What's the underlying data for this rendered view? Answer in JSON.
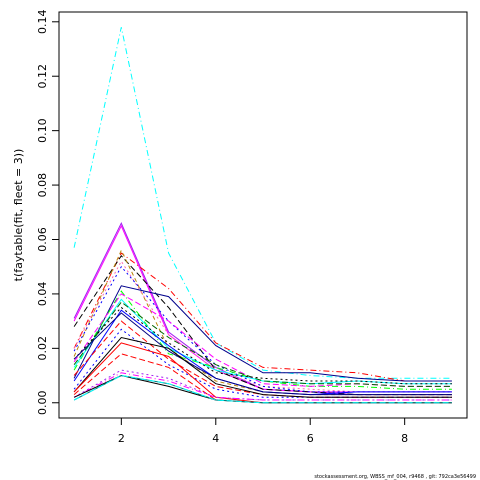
{
  "chart_data": {
    "type": "line",
    "title": "",
    "xlabel": "",
    "ylabel": "t(faytable(fit, fleet = 3))",
    "x": [
      1,
      2,
      3,
      4,
      5,
      6,
      7,
      8,
      9
    ],
    "xlim": [
      0.68,
      9.32
    ],
    "ylim": [
      -0.0056,
      0.1436
    ],
    "x_ticks": [
      2,
      4,
      6,
      8
    ],
    "y_ticks": [
      0.0,
      0.02,
      0.04,
      0.06,
      0.08,
      0.1,
      0.12,
      0.14
    ],
    "y_tick_labels": [
      "0.00",
      "0.02",
      "0.04",
      "0.06",
      "0.08",
      "0.10",
      "0.12",
      "0.14"
    ],
    "grid": false,
    "legend": "none",
    "series": [
      {
        "color": "#00ffff",
        "dash": "6,3,1,3",
        "values": [
          0.057,
          0.138,
          0.055,
          0.022,
          0.012,
          0.01,
          0.009,
          0.009,
          0.009
        ]
      },
      {
        "color": "#a020f0",
        "dash": "",
        "values": [
          0.031,
          0.066,
          0.026,
          0.013,
          0.005,
          0.004,
          0.003,
          0.003,
          0.003
        ]
      },
      {
        "color": "#ff00ff",
        "dash": "",
        "values": [
          0.03,
          0.065,
          0.025,
          0.012,
          0.005,
          0.004,
          0.004,
          0.004,
          0.004
        ]
      },
      {
        "color": "#ff0000",
        "dash": "6,3,1,3",
        "values": [
          0.02,
          0.055,
          0.042,
          0.022,
          0.013,
          0.012,
          0.011,
          0.008,
          0.008
        ]
      },
      {
        "color": "#000000",
        "dash": "6,3",
        "values": [
          0.028,
          0.054,
          0.035,
          0.012,
          0.005,
          0.004,
          0.003,
          0.003,
          0.003
        ]
      },
      {
        "color": "#b8860b",
        "dash": "4,3",
        "values": [
          0.017,
          0.056,
          0.02,
          0.008,
          0.004,
          0.003,
          0.003,
          0.003,
          0.003
        ]
      },
      {
        "color": "#ff69b4",
        "dash": "2,3",
        "values": [
          0.02,
          0.052,
          0.025,
          0.012,
          0.006,
          0.005,
          0.004,
          0.004,
          0.004
        ]
      },
      {
        "color": "#0000ff",
        "dash": "2,3",
        "values": [
          0.019,
          0.05,
          0.03,
          0.014,
          0.006,
          0.004,
          0.004,
          0.004,
          0.004
        ]
      },
      {
        "color": "#00008b",
        "dash": "",
        "values": [
          0.009,
          0.043,
          0.039,
          0.021,
          0.011,
          0.011,
          0.009,
          0.008,
          0.008
        ]
      },
      {
        "color": "#00ff00",
        "dash": "6,3,1,3",
        "values": [
          0.012,
          0.041,
          0.018,
          0.013,
          0.008,
          0.006,
          0.006,
          0.005,
          0.005
        ]
      },
      {
        "color": "#ff00ff",
        "dash": "6,3",
        "values": [
          0.015,
          0.04,
          0.03,
          0.016,
          0.007,
          0.006,
          0.007,
          0.006,
          0.006
        ]
      },
      {
        "color": "#00ffff",
        "dash": "",
        "values": [
          0.013,
          0.038,
          0.02,
          0.012,
          0.008,
          0.007,
          0.008,
          0.007,
          0.007
        ]
      },
      {
        "color": "#006400",
        "dash": "6,3",
        "values": [
          0.014,
          0.037,
          0.024,
          0.014,
          0.008,
          0.007,
          0.007,
          0.006,
          0.006
        ]
      },
      {
        "color": "#000000",
        "dash": "2,3",
        "values": [
          0.016,
          0.035,
          0.022,
          0.011,
          0.009,
          0.008,
          0.008,
          0.007,
          0.007
        ]
      },
      {
        "color": "#0000ff",
        "dash": "",
        "values": [
          0.008,
          0.034,
          0.021,
          0.009,
          0.004,
          0.003,
          0.004,
          0.004,
          0.004
        ]
      },
      {
        "color": "#000080",
        "dash": "",
        "values": [
          0.016,
          0.033,
          0.019,
          0.009,
          0.004,
          0.003,
          0.003,
          0.003,
          0.003
        ]
      },
      {
        "color": "#ff0000",
        "dash": "6,3",
        "values": [
          0.01,
          0.03,
          0.016,
          0.006,
          0.003,
          0.002,
          0.002,
          0.002,
          0.002
        ]
      },
      {
        "color": "#0000ff",
        "dash": "2,3",
        "values": [
          0.005,
          0.027,
          0.014,
          0.005,
          0.002,
          0.002,
          0.002,
          0.002,
          0.002
        ]
      },
      {
        "color": "#000000",
        "dash": "",
        "values": [
          0.004,
          0.024,
          0.02,
          0.007,
          0.003,
          0.002,
          0.002,
          0.002,
          0.002
        ]
      },
      {
        "color": "#ff0000",
        "dash": "",
        "values": [
          0.004,
          0.022,
          0.017,
          0.002,
          0.0,
          0.0,
          0.0,
          0.0,
          0.0
        ]
      },
      {
        "color": "#ff0000",
        "dash": "6,3",
        "values": [
          0.003,
          0.018,
          0.013,
          0.001,
          0.0,
          0.0,
          0.0,
          0.0,
          0.0
        ]
      },
      {
        "color": "#a020f0",
        "dash": "2,3",
        "values": [
          0.002,
          0.012,
          0.009,
          0.002,
          0.001,
          0.001,
          0.001,
          0.001,
          0.001
        ]
      },
      {
        "color": "#ff00ff",
        "dash": "6,3,1,3",
        "values": [
          0.002,
          0.011,
          0.008,
          0.002,
          0.001,
          0.001,
          0.001,
          0.001,
          0.001
        ]
      },
      {
        "color": "#000000",
        "dash": "",
        "values": [
          0.002,
          0.01,
          0.006,
          0.001,
          0.0,
          0.0,
          0.0,
          0.0,
          0.0
        ]
      },
      {
        "color": "#008080",
        "dash": "",
        "values": [
          0.001,
          0.01,
          0.007,
          0.001,
          0.0,
          0.0,
          0.0,
          0.0,
          0.0
        ]
      },
      {
        "color": "#00ffff",
        "dash": "6,3",
        "values": [
          0.001,
          0.01,
          0.007,
          0.001,
          0.0,
          0.0,
          0.0,
          0.0,
          0.0
        ]
      }
    ]
  },
  "footnote": "stockassessment.org, WBSS_mf_004, r9468 , git: 792ca3e56499"
}
